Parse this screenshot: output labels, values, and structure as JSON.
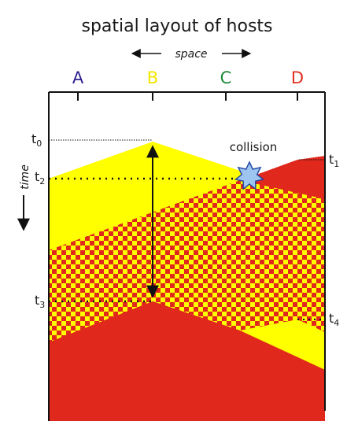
{
  "title": "spatial layout of hosts",
  "space_label": "space",
  "time_label": "time",
  "hosts": [
    {
      "label": "A",
      "color": "#2b1f8f"
    },
    {
      "label": "B",
      "color": "#f2e600"
    },
    {
      "label": "C",
      "color": "#1f8a3a"
    },
    {
      "label": "D",
      "color": "#e03020"
    }
  ],
  "time_marks": [
    {
      "base": "t",
      "sub": "0"
    },
    {
      "base": "t",
      "sub": "1"
    },
    {
      "base": "t",
      "sub": "2"
    },
    {
      "base": "t",
      "sub": "3"
    },
    {
      "base": "t",
      "sub": "4"
    }
  ],
  "collision_label": "collision",
  "colors": {
    "signal_b": "#ffff00",
    "signal_d": "#e0281c",
    "collision_star": "#9ec5f0",
    "star_outline": "#1a3a9c"
  }
}
